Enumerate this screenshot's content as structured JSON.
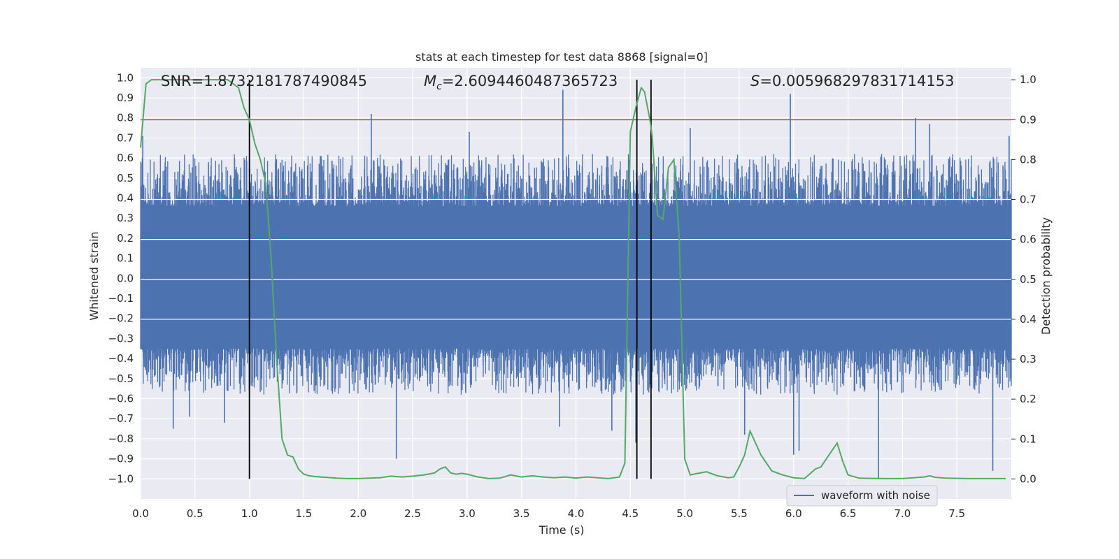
{
  "chart_data": {
    "type": "line",
    "title": "stats at each timestep for test data 8868 [signal=0]",
    "xlabel": "Time (s)",
    "ylabel_left": "Whitened strain",
    "ylabel_right": "Detection probability",
    "xlim": [
      0.0,
      8.0
    ],
    "ylim_left": [
      -1.1,
      1.05
    ],
    "ylim_right": [
      -0.05,
      1.03
    ],
    "x_ticks": [
      "0.0",
      "0.5",
      "1.0",
      "1.5",
      "2.0",
      "2.5",
      "3.0",
      "3.5",
      "4.0",
      "4.5",
      "5.0",
      "5.5",
      "6.0",
      "6.5",
      "7.0",
      "7.5"
    ],
    "y_left_ticks": [
      "1.0",
      "0.9",
      "0.8",
      "0.7",
      "0.6",
      "0.5",
      "0.4",
      "0.3",
      "0.2",
      "0.1",
      "0.0",
      "-0.1",
      "-0.2",
      "-0.3",
      "-0.4",
      "-0.5",
      "-0.6",
      "-0.7",
      "-0.8",
      "-0.9",
      "-1.0"
    ],
    "y_right_ticks": [
      "1.0",
      "0.9",
      "0.8",
      "0.7",
      "0.6",
      "0.5",
      "0.4",
      "0.3",
      "0.2",
      "0.1",
      "0.0"
    ],
    "grid": true,
    "legend_position": "bottom-right",
    "annotations": {
      "snr_label": "SNR=1.8732181787490845",
      "mc_symbol": "M",
      "mc_subscript": "c",
      "mc_value": "=2.6094460487365723",
      "s_symbol": "S",
      "s_value": "=0.005968297831714153"
    },
    "threshold": {
      "axis": "right",
      "value": 0.9,
      "color": "#c44e52"
    },
    "vertical_markers": [
      1.0,
      4.56,
      4.69
    ],
    "series": [
      {
        "name": "waveform with noise",
        "axis": "left",
        "color": "#4c72b0",
        "kind": "noise",
        "band": [
          -0.35,
          0.36
        ],
        "typical_peak": [
          -0.58,
          0.62
        ],
        "spikes": [
          {
            "x": 0.02,
            "y": 0.71
          },
          {
            "x": 0.3,
            "y": -0.75
          },
          {
            "x": 0.45,
            "y": -0.69
          },
          {
            "x": 0.77,
            "y": -0.72
          },
          {
            "x": 2.12,
            "y": 0.82
          },
          {
            "x": 2.35,
            "y": -0.9
          },
          {
            "x": 3.02,
            "y": 0.73
          },
          {
            "x": 3.85,
            "y": -0.74
          },
          {
            "x": 3.88,
            "y": 0.94
          },
          {
            "x": 4.33,
            "y": -0.76
          },
          {
            "x": 4.55,
            "y": -0.82
          },
          {
            "x": 5.05,
            "y": 0.75
          },
          {
            "x": 5.55,
            "y": -0.78
          },
          {
            "x": 5.97,
            "y": 0.92
          },
          {
            "x": 6.0,
            "y": -0.88
          },
          {
            "x": 6.05,
            "y": -0.86
          },
          {
            "x": 6.78,
            "y": -1.0
          },
          {
            "x": 7.12,
            "y": 0.8
          },
          {
            "x": 7.25,
            "y": 0.77
          },
          {
            "x": 7.83,
            "y": -0.96
          },
          {
            "x": 7.98,
            "y": 0.71
          }
        ]
      },
      {
        "name": "",
        "axis": "right",
        "color": "#55a868",
        "x": [
          0.0,
          0.05,
          0.1,
          0.2,
          0.3,
          0.4,
          0.5,
          0.6,
          0.7,
          0.8,
          0.85,
          0.9,
          0.95,
          1.0,
          1.05,
          1.1,
          1.15,
          1.2,
          1.25,
          1.3,
          1.35,
          1.4,
          1.45,
          1.5,
          1.55,
          1.6,
          1.7,
          1.8,
          1.9,
          2.0,
          2.1,
          2.2,
          2.3,
          2.4,
          2.5,
          2.6,
          2.7,
          2.75,
          2.8,
          2.85,
          2.9,
          2.95,
          3.0,
          3.1,
          3.2,
          3.3,
          3.4,
          3.5,
          3.6,
          3.7,
          3.8,
          3.9,
          4.0,
          4.1,
          4.2,
          4.3,
          4.4,
          4.45,
          4.5,
          4.55,
          4.6,
          4.63,
          4.68,
          4.7,
          4.75,
          4.8,
          4.85,
          4.9,
          4.95,
          5.0,
          5.05,
          5.1,
          5.2,
          5.3,
          5.4,
          5.45,
          5.5,
          5.55,
          5.6,
          5.65,
          5.7,
          5.8,
          5.9,
          6.0,
          6.1,
          6.2,
          6.25,
          6.3,
          6.35,
          6.4,
          6.45,
          6.5,
          6.6,
          6.8,
          7.0,
          7.1,
          7.2,
          7.25,
          7.3,
          7.4,
          7.6,
          7.8,
          7.95
        ],
        "y": [
          0.83,
          0.99,
          1.0,
          1.0,
          1.0,
          1.0,
          1.0,
          1.0,
          1.0,
          1.0,
          0.99,
          0.98,
          0.93,
          0.9,
          0.84,
          0.8,
          0.74,
          0.55,
          0.3,
          0.1,
          0.06,
          0.055,
          0.025,
          0.012,
          0.008,
          0.006,
          0.004,
          0.002,
          0.001,
          0.001,
          0.002,
          0.003,
          0.007,
          0.005,
          0.007,
          0.01,
          0.015,
          0.025,
          0.03,
          0.015,
          0.012,
          0.014,
          0.012,
          0.005,
          0.001,
          0.002,
          0.01,
          0.005,
          0.008,
          0.005,
          0.003,
          0.005,
          0.002,
          0.005,
          0.003,
          0.001,
          0.005,
          0.04,
          0.87,
          0.93,
          0.98,
          0.97,
          0.9,
          0.86,
          0.66,
          0.65,
          0.78,
          0.8,
          0.6,
          0.05,
          0.01,
          0.013,
          0.018,
          0.008,
          0.003,
          0.005,
          0.03,
          0.06,
          0.12,
          0.09,
          0.06,
          0.02,
          0.01,
          0.003,
          0.001,
          0.025,
          0.03,
          0.05,
          0.07,
          0.09,
          0.045,
          0.01,
          0.002,
          0.001,
          0.001,
          0.003,
          0.005,
          0.008,
          0.004,
          0.002,
          0.001,
          0.001,
          0.001
        ]
      }
    ]
  }
}
